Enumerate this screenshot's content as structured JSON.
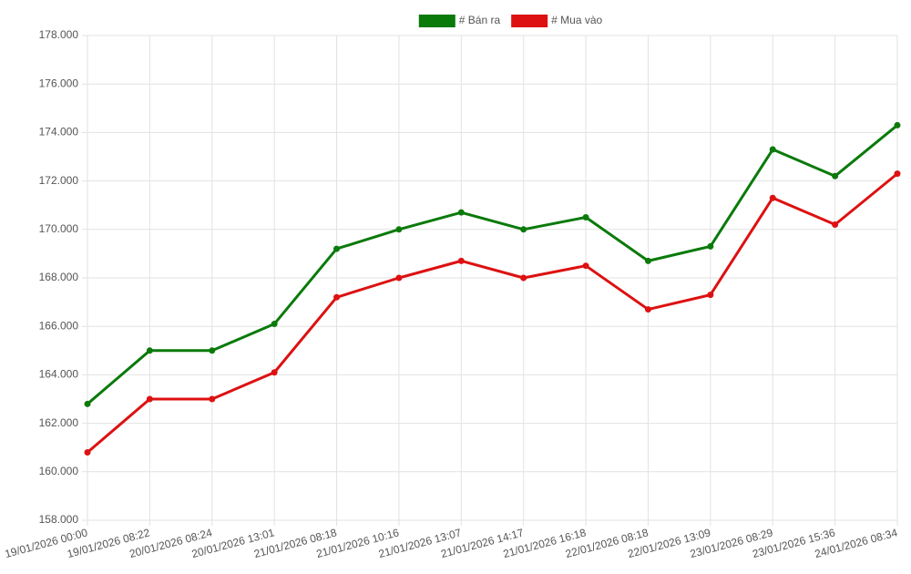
{
  "chart_data": {
    "type": "line",
    "categories": [
      "19/01/2026 00:00",
      "19/01/2026 08:22",
      "20/01/2026 08:24",
      "20/01/2026 13:01",
      "21/01/2026 08:18",
      "21/01/2026 10:16",
      "21/01/2026 13:07",
      "21/01/2026 14:17",
      "21/01/2026 16:18",
      "22/01/2026 08:18",
      "22/01/2026 13:09",
      "23/01/2026 08:29",
      "23/01/2026 15:36",
      "24/01/2026 08:34"
    ],
    "series": [
      {
        "name": "# Bán ra",
        "color": "#0a7a0a",
        "values": [
          162800,
          165000,
          165000,
          166100,
          169200,
          170000,
          170700,
          170000,
          170500,
          168700,
          169300,
          173300,
          172200,
          174300
        ]
      },
      {
        "name": "# Mua vào",
        "color": "#dd1111",
        "values": [
          160800,
          163000,
          163000,
          164100,
          167200,
          168000,
          168700,
          168000,
          168500,
          166700,
          167300,
          171300,
          170200,
          172300
        ]
      }
    ],
    "ylim": [
      158000,
      178000
    ],
    "yticks": [
      {
        "value": 158000,
        "label": "158.000"
      },
      {
        "value": 160000,
        "label": "160.000"
      },
      {
        "value": 162000,
        "label": "162.000"
      },
      {
        "value": 164000,
        "label": "164.000"
      },
      {
        "value": 166000,
        "label": "166.000"
      },
      {
        "value": 168000,
        "label": "168.000"
      },
      {
        "value": 170000,
        "label": "170.000"
      },
      {
        "value": 172000,
        "label": "172.000"
      },
      {
        "value": 174000,
        "label": "174.000"
      },
      {
        "value": 176000,
        "label": "176.000"
      },
      {
        "value": 178000,
        "label": "178.000"
      }
    ],
    "grid": true,
    "legend": "top"
  }
}
